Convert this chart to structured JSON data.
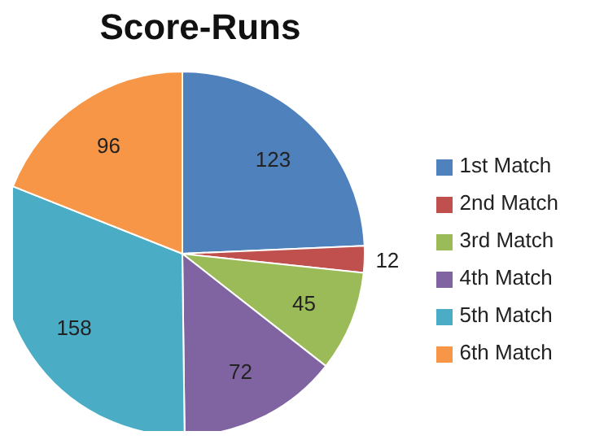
{
  "chart_data": {
    "type": "pie",
    "title": "Score-Runs",
    "categories": [
      "1st Match",
      "2nd Match",
      "3rd Match",
      "4th Match",
      "5th Match",
      "6th Match"
    ],
    "values": [
      123,
      12,
      45,
      72,
      158,
      96
    ],
    "colors": [
      "#4f81bd",
      "#c0504d",
      "#9bbb59",
      "#8064a2",
      "#4bacc6",
      "#f79646"
    ],
    "data_labels": true,
    "legend": "right"
  }
}
